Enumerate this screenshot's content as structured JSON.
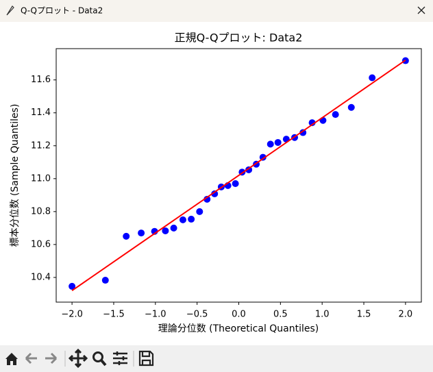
{
  "window": {
    "title": "Q-Qプロット - Data2"
  },
  "chart_data": {
    "type": "scatter",
    "title": "正規Q-Qプロット: Data2",
    "xlabel": "理論分位数 (Theoretical Quantiles)",
    "ylabel": "標本分位数 (Sample Quantiles)",
    "xlim": [
      -2.19,
      2.19
    ],
    "ylim": [
      10.25,
      11.79
    ],
    "xticks": [
      {
        "value": -2,
        "label": "−2.0"
      },
      {
        "value": -1.5,
        "label": "−1.5"
      },
      {
        "value": -1,
        "label": "−1.0"
      },
      {
        "value": -0.5,
        "label": "−0.5"
      },
      {
        "value": 0,
        "label": "0.0"
      },
      0.5,
      {
        "value": 1,
        "label": "1.0"
      },
      1.5,
      {
        "value": 2,
        "label": "2.0"
      }
    ],
    "yticks": [
      10.4,
      10.6,
      10.8,
      {
        "value": 11,
        "label": "11.0"
      },
      11.2,
      11.4,
      11.6
    ],
    "grid": false,
    "series": [
      {
        "style": "points",
        "color": "#0000ff",
        "x": [
          -2.0,
          -1.6,
          -1.35,
          -1.17,
          -1.01,
          -0.88,
          -0.78,
          -0.67,
          -0.57,
          -0.47,
          -0.38,
          -0.29,
          -0.21,
          -0.13,
          -0.04,
          0.04,
          0.12,
          0.21,
          0.29,
          0.38,
          0.47,
          0.57,
          0.67,
          0.77,
          0.88,
          1.01,
          1.16,
          1.35,
          1.6,
          2.0
        ],
        "values": [
          10.346,
          10.383,
          10.65,
          10.67,
          10.68,
          10.683,
          10.7,
          10.75,
          10.754,
          10.8,
          10.875,
          10.908,
          10.95,
          10.958,
          10.97,
          11.04,
          11.054,
          11.088,
          11.13,
          11.21,
          11.22,
          11.24,
          11.25,
          11.28,
          11.34,
          11.354,
          11.39,
          11.433,
          11.613,
          11.717
        ]
      },
      {
        "style": "line",
        "color": "#ff0000",
        "x": [
          -2.0,
          2.0
        ],
        "values": [
          10.32,
          11.72
        ]
      }
    ]
  }
}
